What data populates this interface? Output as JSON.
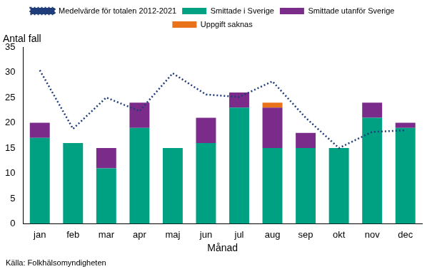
{
  "chart_data": {
    "type": "bar",
    "y_label": "Antal fall",
    "x_label": "Månad",
    "annotation": "Källa: Folkhälsomyndigheten",
    "categories": [
      "jan",
      "feb",
      "mar",
      "apr",
      "maj",
      "jun",
      "jul",
      "aug",
      "sep",
      "okt",
      "nov",
      "dec"
    ],
    "series": [
      {
        "name": "Smittade i Sverige",
        "type": "bar",
        "color": "#00a082",
        "values": [
          17,
          16,
          11,
          19,
          15,
          16,
          23,
          15,
          15,
          15,
          21,
          19
        ]
      },
      {
        "name": "Smittade utanför Sverige",
        "type": "bar",
        "color": "#7b2c8a",
        "values": [
          3,
          0,
          4,
          5,
          0,
          5,
          3,
          8,
          3,
          0,
          3,
          1
        ]
      },
      {
        "name": "Uppgift saknas",
        "type": "bar",
        "color": "#e8731a",
        "values": [
          0,
          0,
          0,
          0,
          0,
          0,
          0,
          1,
          0,
          0,
          0,
          0
        ]
      },
      {
        "name": "Medelvärde för totalen 2012-2021",
        "type": "line",
        "color": "#1f3d7a",
        "line_style": "dotted",
        "marker": "none",
        "values": [
          30.4,
          18.8,
          25,
          22.3,
          29.8,
          25.6,
          25.1,
          28.2,
          21,
          15,
          18.2,
          18.5
        ]
      }
    ],
    "stacked": true,
    "ylim": [
      0,
      35
    ],
    "yticks": [
      0,
      5,
      10,
      15,
      20,
      25,
      30,
      35
    ],
    "grid": false,
    "legend": "top",
    "data_labels": false
  }
}
